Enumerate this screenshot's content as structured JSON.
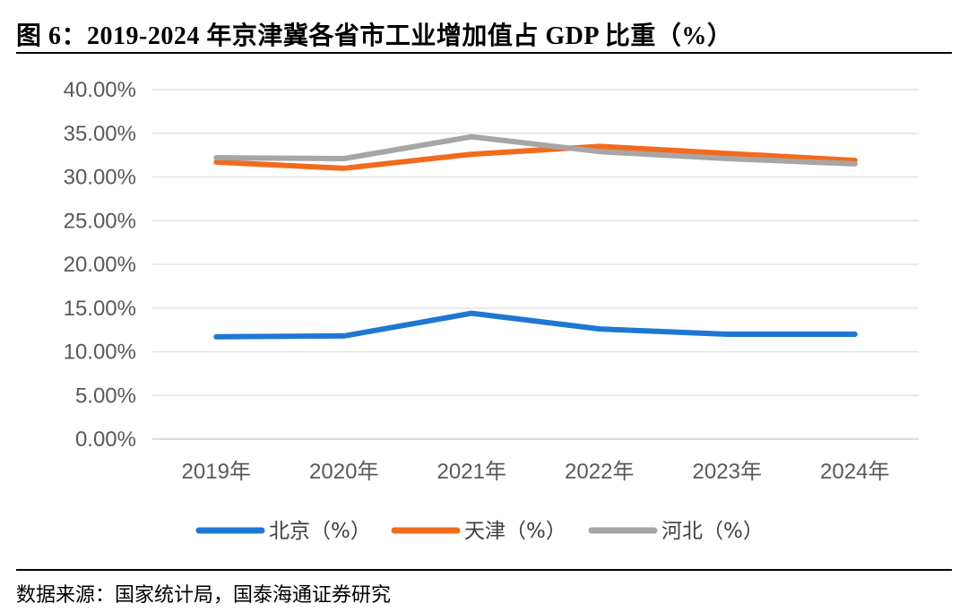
{
  "figure": {
    "title": "图 6：2019-2024 年京津冀各省市工业增加值占 GDP 比重（%）",
    "source": "数据来源：国家统计局，国泰海通证券研究"
  },
  "chart_data": {
    "type": "line",
    "title": "2019-2024 年京津冀各省市工业增加值占 GDP 比重（%）",
    "xlabel": "",
    "ylabel": "",
    "categories": [
      "2019年",
      "2020年",
      "2021年",
      "2022年",
      "2023年",
      "2024年"
    ],
    "ylim": [
      0,
      40
    ],
    "yticks": [
      0,
      5,
      10,
      15,
      20,
      25,
      30,
      35,
      40
    ],
    "ytick_labels": [
      "0.00%",
      "5.00%",
      "10.00%",
      "15.00%",
      "20.00%",
      "25.00%",
      "30.00%",
      "35.00%",
      "40.00%"
    ],
    "grid": true,
    "legend_position": "bottom",
    "series": [
      {
        "name": "北京（%）",
        "color": "#1f77d4",
        "values": [
          11.7,
          11.8,
          14.4,
          12.6,
          12.0,
          12.0
        ]
      },
      {
        "name": "天津（%）",
        "color": "#f26b1d",
        "values": [
          31.7,
          31.0,
          32.6,
          33.5,
          32.7,
          31.9
        ]
      },
      {
        "name": "河北（%）",
        "color": "#a6a6a6",
        "values": [
          32.2,
          32.1,
          34.6,
          32.9,
          32.1,
          31.5
        ]
      }
    ]
  }
}
